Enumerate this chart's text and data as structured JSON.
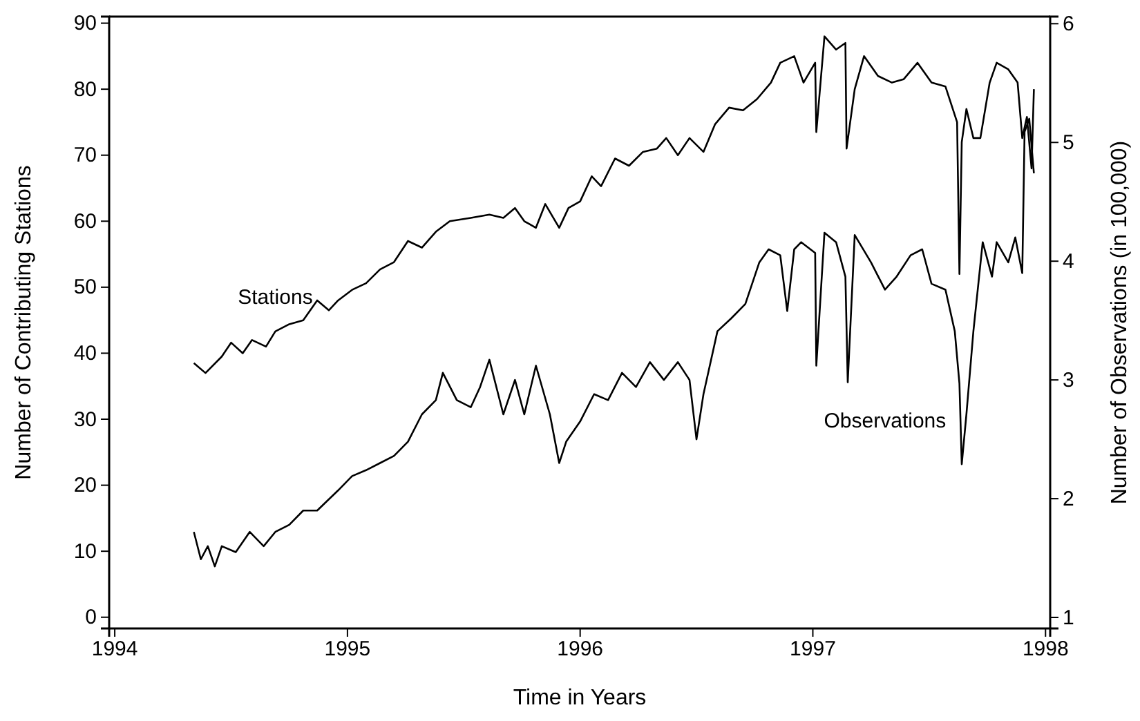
{
  "chart_data": {
    "type": "line",
    "xlabel": "Time in Years",
    "ylabel": "Number of Contributing Stations",
    "y2label": "Number of Observations (in 100,000)",
    "xlim": [
      1993.976,
      1998.02
    ],
    "xticks": [
      1994,
      1995,
      1996,
      1997,
      1998
    ],
    "ylim": [
      -1.7,
      91
    ],
    "yticks": [
      0,
      10,
      20,
      30,
      40,
      50,
      60,
      70,
      80,
      90
    ],
    "y2lim": [
      0.907,
      6.06
    ],
    "y2ticks": [
      1,
      2,
      3,
      4,
      5,
      6
    ],
    "grid": false,
    "legend": false,
    "marker": "none",
    "line_style": "solid",
    "series": [
      {
        "name": "Stations",
        "color": "#000000",
        "x": [
          1994.34,
          1994.39,
          1994.46,
          1994.5,
          1994.55,
          1994.59,
          1994.65,
          1994.69,
          1994.75,
          1994.81,
          1994.87,
          1994.92,
          1994.96,
          1995.02,
          1995.08,
          1995.14,
          1995.2,
          1995.26,
          1995.32,
          1995.38,
          1995.44,
          1995.53,
          1995.61,
          1995.67,
          1995.72,
          1995.76,
          1995.81,
          1995.85,
          1995.91,
          1995.95,
          1996,
          1996.05,
          1996.09,
          1996.15,
          1996.21,
          1996.27,
          1996.33,
          1996.37,
          1996.42,
          1996.47,
          1996.53,
          1996.58,
          1996.64,
          1996.7,
          1996.76,
          1996.82,
          1996.86,
          1996.92,
          1996.96,
          1997.01,
          1997.015,
          1997.05,
          1997.1,
          1997.14,
          1997.145,
          1997.18,
          1997.22,
          1997.28,
          1997.34,
          1997.39,
          1997.45,
          1997.51,
          1997.57,
          1997.62,
          1997.63,
          1997.64,
          1997.66,
          1997.69,
          1997.72,
          1997.76,
          1997.79,
          1997.84,
          1997.88,
          1997.9,
          1997.92,
          1997.94,
          1997.95
        ],
        "values": [
          38.5,
          37,
          39.5,
          41.6,
          40,
          42,
          41,
          43.3,
          44.4,
          45,
          48,
          46.5,
          48,
          49.6,
          50.6,
          52.7,
          53.8,
          57,
          56,
          58.4,
          60,
          60.5,
          61,
          60.5,
          62,
          60,
          59,
          62.6,
          59,
          62,
          63,
          66.8,
          65.3,
          69.5,
          68.4,
          70.5,
          71,
          72.6,
          70,
          72.6,
          70.5,
          74.7,
          77.2,
          76.8,
          78.5,
          81,
          84,
          85,
          81,
          84,
          73.5,
          88,
          86,
          87,
          71,
          80,
          85,
          82,
          81,
          81.5,
          84,
          81,
          80.4,
          75,
          52,
          72,
          77,
          72.6,
          72.6,
          81,
          84,
          83,
          81,
          72.6,
          75.8,
          68,
          80
        ]
      },
      {
        "name": "Observations",
        "color": "#000000",
        "axis": "y2",
        "x": [
          1994.34,
          1994.37,
          1994.4,
          1994.43,
          1994.46,
          1994.52,
          1994.58,
          1994.64,
          1994.69,
          1994.75,
          1994.81,
          1994.87,
          1994.96,
          1995.02,
          1995.08,
          1995.14,
          1995.2,
          1995.26,
          1995.32,
          1995.38,
          1995.41,
          1995.47,
          1995.53,
          1995.57,
          1995.61,
          1995.67,
          1995.72,
          1995.76,
          1995.81,
          1995.87,
          1995.91,
          1995.94,
          1996,
          1996.06,
          1996.12,
          1996.18,
          1996.24,
          1996.3,
          1996.36,
          1996.42,
          1996.47,
          1996.5,
          1996.53,
          1996.59,
          1996.65,
          1996.71,
          1996.77,
          1996.81,
          1996.86,
          1996.89,
          1996.92,
          1996.95,
          1997.01,
          1997.015,
          1997.05,
          1997.1,
          1997.14,
          1997.15,
          1997.18,
          1997.25,
          1997.31,
          1997.36,
          1997.42,
          1997.47,
          1997.51,
          1997.57,
          1997.61,
          1997.63,
          1997.64,
          1997.66,
          1997.69,
          1997.73,
          1997.77,
          1997.79,
          1997.84,
          1997.87,
          1997.9,
          1997.91,
          1997.93,
          1997.95
        ],
        "values": [
          1.72,
          1.49,
          1.6,
          1.43,
          1.6,
          1.55,
          1.72,
          1.6,
          1.72,
          1.78,
          1.9,
          1.9,
          2.07,
          2.19,
          2.24,
          2.3,
          2.36,
          2.48,
          2.71,
          2.83,
          3.06,
          2.83,
          2.77,
          2.94,
          3.17,
          2.71,
          3.0,
          2.71,
          3.12,
          2.71,
          2.3,
          2.48,
          2.65,
          2.88,
          2.83,
          3.06,
          2.94,
          3.15,
          3.0,
          3.15,
          3.0,
          2.5,
          2.88,
          3.41,
          3.52,
          3.64,
          3.99,
          4.1,
          4.05,
          3.58,
          4.1,
          4.16,
          4.07,
          3.12,
          4.24,
          4.16,
          3.87,
          2.98,
          4.22,
          3.99,
          3.76,
          3.87,
          4.05,
          4.1,
          3.81,
          3.76,
          3.41,
          2.97,
          2.29,
          2.71,
          3.41,
          4.16,
          3.87,
          4.16,
          3.99,
          4.2,
          3.9,
          5.09,
          5.2,
          4.74
        ]
      }
    ]
  }
}
